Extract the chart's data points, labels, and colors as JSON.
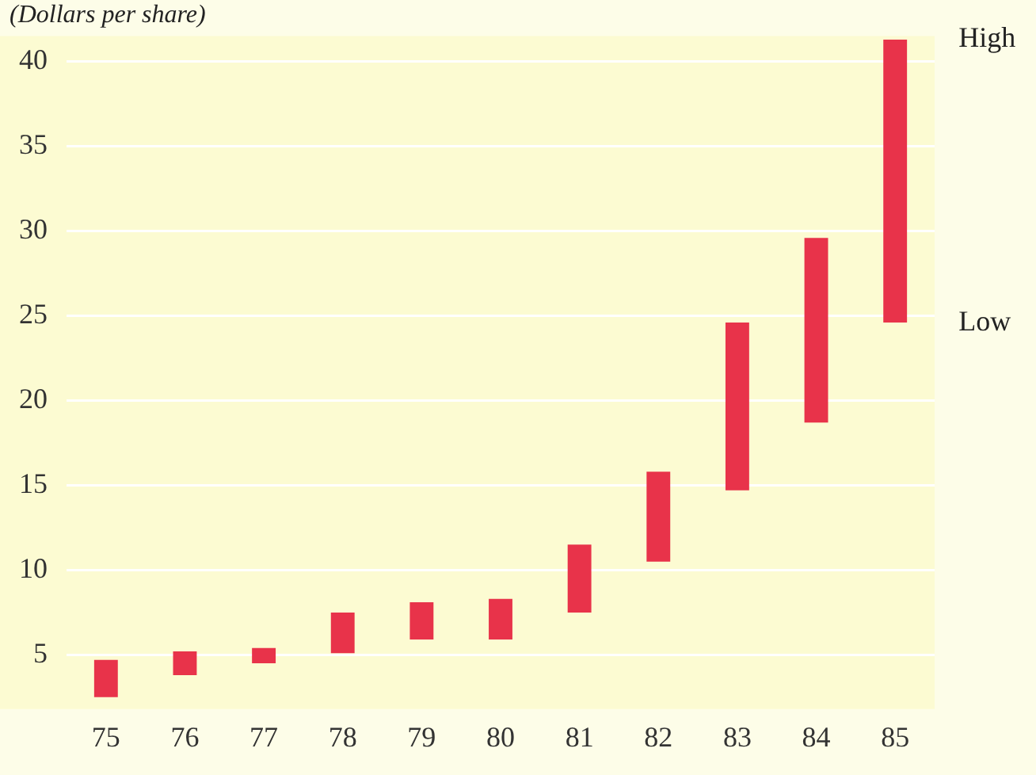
{
  "chart_data": {
    "type": "bar",
    "ylabel": "(Dollars per share)",
    "categories": [
      "75",
      "76",
      "77",
      "78",
      "79",
      "80",
      "81",
      "82",
      "83",
      "84",
      "85"
    ],
    "base": [
      2.5,
      3.8,
      4.5,
      5.1,
      5.9,
      5.9,
      7.5,
      10.5,
      14.7,
      18.7,
      24.6
    ],
    "values": [
      2.2,
      1.4,
      0.9,
      2.4,
      2.2,
      2.4,
      4.0,
      5.3,
      9.9,
      10.9,
      16.7
    ],
    "color": "#e8334a",
    "ylim": [
      1.8,
      41.5
    ],
    "yticks": [
      5,
      10,
      15,
      20,
      25,
      30,
      35,
      40
    ],
    "grid": "y",
    "legend": false,
    "annotations": [
      {
        "text": "High",
        "x": "85",
        "y": 41.3
      },
      {
        "text": "Low",
        "x": "85",
        "y": 24.6
      }
    ]
  }
}
